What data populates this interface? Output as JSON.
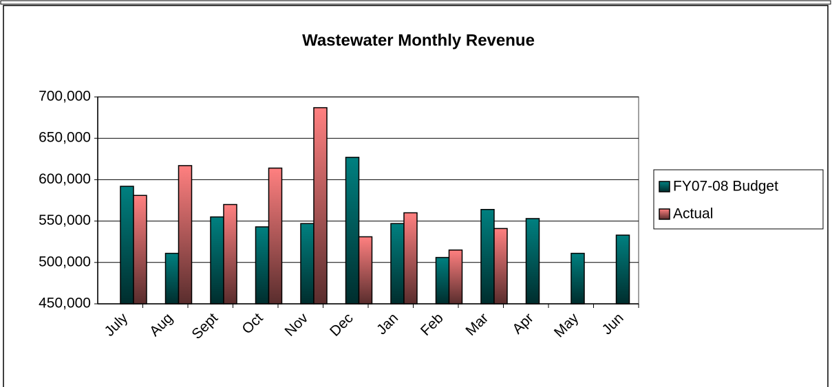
{
  "chart_data": {
    "type": "bar",
    "title": "Wastewater Monthly Revenue",
    "categories": [
      "July",
      "Aug",
      "Sept",
      "Oct",
      "Nov",
      "Dec",
      "Jan",
      "Feb",
      "Mar",
      "Apr",
      "May",
      "Jun"
    ],
    "series": [
      {
        "name": "FY07-08 Budget",
        "color": "#008080",
        "values": [
          592000,
          511000,
          555000,
          543000,
          547000,
          627000,
          547000,
          506000,
          564000,
          553000,
          511000,
          533000
        ]
      },
      {
        "name": "Actual",
        "color": "#ff8080",
        "values": [
          581000,
          617000,
          570000,
          614000,
          687000,
          531000,
          560000,
          515000,
          541000,
          null,
          null,
          null
        ]
      }
    ],
    "ylim": [
      450000,
      700000
    ],
    "yticks": [
      {
        "value": 450000,
        "label": "450,000"
      },
      {
        "value": 500000,
        "label": "500,000"
      },
      {
        "value": 550000,
        "label": "550,000"
      },
      {
        "value": 600000,
        "label": "600,000"
      },
      {
        "value": 650000,
        "label": "650,000"
      },
      {
        "value": 700000,
        "label": "700,000"
      }
    ],
    "grid": true,
    "legend": "right"
  }
}
